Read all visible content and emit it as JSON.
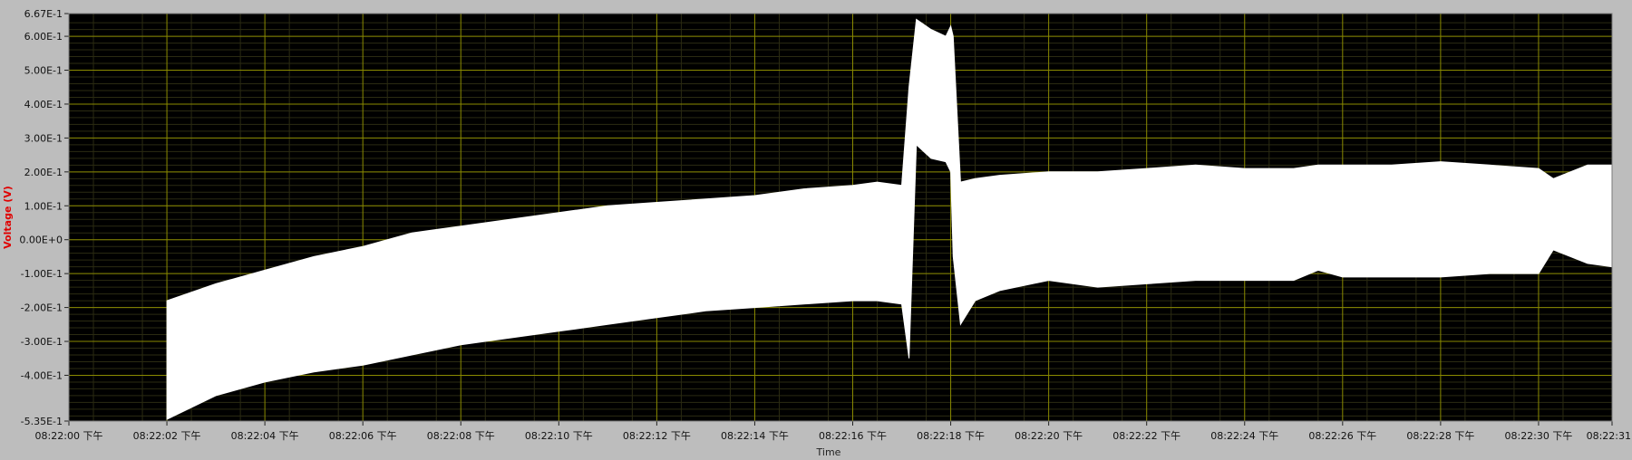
{
  "chart_data": {
    "type": "area",
    "title": "",
    "xlabel": "Time",
    "ylabel": "Voltage (V)",
    "x_ticks": [
      "08:22:00 下午",
      "08:22:02 下午",
      "08:22:04 下午",
      "08:22:06 下午",
      "08:22:08 下午",
      "08:22:10 下午",
      "08:22:12 下午",
      "08:22:14 下午",
      "08:22:16 下午",
      "08:22:18 下午",
      "08:22:20 下午",
      "08:22:22 下午",
      "08:22:24 下午",
      "08:22:26 下午",
      "08:22:28 下午",
      "08:22:30 下午",
      "08:22:31"
    ],
    "x_tick_seconds": [
      0,
      2,
      4,
      6,
      8,
      10,
      12,
      14,
      16,
      18,
      20,
      22,
      24,
      26,
      28,
      30,
      31.5
    ],
    "y_ticks": [
      "6.67E-1",
      "6.00E-1",
      "5.00E-1",
      "4.00E-1",
      "3.00E-1",
      "2.00E-1",
      "1.00E-1",
      "0.00E+0",
      "-1.00E-1",
      "-2.00E-1",
      "-3.00E-1",
      "-4.00E-1",
      "-5.35E-1"
    ],
    "y_tick_values": [
      0.667,
      0.6,
      0.5,
      0.4,
      0.3,
      0.2,
      0.1,
      0.0,
      -0.1,
      -0.2,
      -0.3,
      -0.4,
      -0.535
    ],
    "xlim_seconds": [
      0,
      31.5
    ],
    "ylim": [
      -0.535,
      0.667
    ],
    "grid": true,
    "legend": "none",
    "series": [
      {
        "x_seconds": [
          2.0,
          3.0,
          4.0,
          5.0,
          6.0,
          7.0,
          8.0,
          9.0,
          10.0,
          11.0,
          12.0,
          13.0,
          14.0,
          15.0,
          16.0,
          16.5,
          17.0,
          17.15,
          17.3,
          17.6,
          17.9,
          18.0,
          18.05,
          18.2,
          18.5,
          19.0,
          20.0,
          21.0,
          22.0,
          23.0,
          24.0,
          25.0,
          25.5,
          26.0,
          27.0,
          28.0,
          29.0,
          30.0,
          30.3,
          31.0,
          31.5
        ],
        "upper": [
          -0.18,
          -0.13,
          -0.09,
          -0.05,
          -0.02,
          0.02,
          0.04,
          0.06,
          0.08,
          0.1,
          0.11,
          0.12,
          0.13,
          0.15,
          0.16,
          0.17,
          0.16,
          0.45,
          0.65,
          0.62,
          0.6,
          0.63,
          0.6,
          0.17,
          0.18,
          0.19,
          0.2,
          0.2,
          0.21,
          0.22,
          0.21,
          0.21,
          0.22,
          0.22,
          0.22,
          0.23,
          0.22,
          0.21,
          0.18,
          0.22,
          0.22
        ],
        "lower": [
          -0.53,
          -0.46,
          -0.42,
          -0.39,
          -0.37,
          -0.34,
          -0.31,
          -0.29,
          -0.27,
          -0.25,
          -0.23,
          -0.21,
          -0.2,
          -0.19,
          -0.18,
          -0.18,
          -0.19,
          -0.35,
          0.28,
          0.24,
          0.23,
          0.2,
          -0.05,
          -0.25,
          -0.18,
          -0.15,
          -0.12,
          -0.14,
          -0.13,
          -0.12,
          -0.12,
          -0.12,
          -0.09,
          -0.11,
          -0.11,
          -0.11,
          -0.1,
          -0.1,
          -0.03,
          -0.07,
          -0.08
        ]
      }
    ]
  }
}
